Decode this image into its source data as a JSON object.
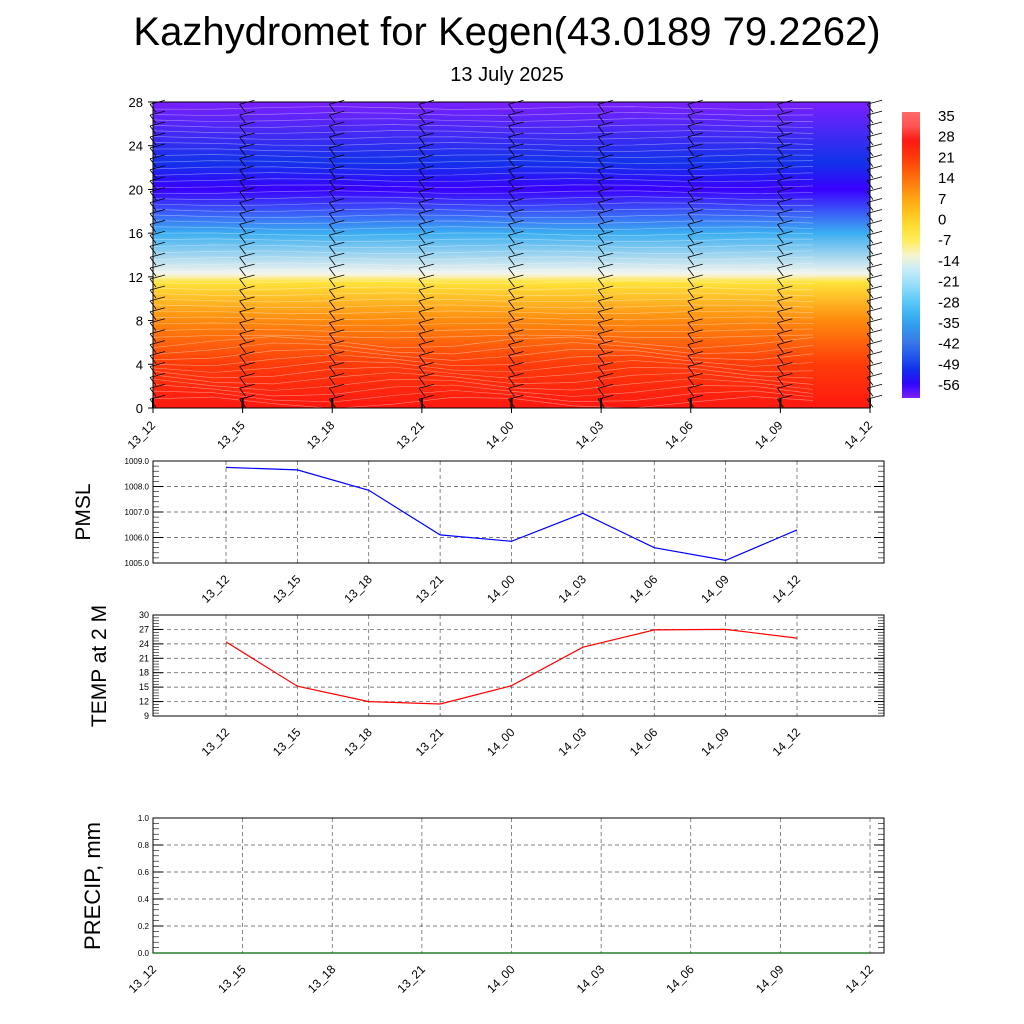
{
  "title": "Kazhydromet for Kegen(43.0189 79.2262)",
  "subtitle": "13 July 2025",
  "chart_data": [
    {
      "type": "heatmap",
      "title": "",
      "x_ticks": [
        "13_12",
        "13_15",
        "13_18",
        "13_21",
        "14_00",
        "14_03",
        "14_06",
        "14_09",
        "14_12"
      ],
      "y_ticks": [
        0,
        4,
        8,
        12,
        16,
        20,
        24,
        28
      ],
      "ylim": [
        0,
        28
      ],
      "colorbar_labels": [
        "35",
        "28",
        "21",
        "14",
        "7",
        "0",
        "-7",
        "-14",
        "-21",
        "-28",
        "-35",
        "-42",
        "-49",
        "-56"
      ],
      "temperature_profile": [
        {
          "height": 0,
          "value": 28
        },
        {
          "height": 4,
          "value": 22
        },
        {
          "height": 8,
          "value": 12
        },
        {
          "height": 11.5,
          "value": -2
        },
        {
          "height": 12.3,
          "value": -12
        },
        {
          "height": 16,
          "value": -32
        },
        {
          "height": 20,
          "value": -56
        },
        {
          "height": 22.5,
          "value": -50
        },
        {
          "height": 28,
          "value": -60
        }
      ],
      "wind_barbs": "shown at each time column"
    },
    {
      "type": "line",
      "ylabel": "PMSL",
      "x": [
        "13_12",
        "13_15",
        "13_18",
        "13_21",
        "14_00",
        "14_03",
        "14_06",
        "14_09",
        "14_12"
      ],
      "series": [
        {
          "values": [
            1008.75,
            1008.65,
            1007.85,
            1006.1,
            1005.85,
            1006.95,
            1005.6,
            1005.1,
            1006.3
          ],
          "color": "#0000ff"
        }
      ],
      "ylim": [
        1005.0,
        1009.0
      ],
      "y_ticks": [
        "1005.0",
        "1006.0",
        "1007.0",
        "1008.0",
        "1009.0"
      ],
      "grid": true
    },
    {
      "type": "line",
      "ylabel": "TEMP at 2 M",
      "x": [
        "13_12",
        "13_15",
        "13_18",
        "13_21",
        "14_00",
        "14_03",
        "14_06",
        "14_09",
        "14_12"
      ],
      "series": [
        {
          "values": [
            24.4,
            15.2,
            12.0,
            11.5,
            15.3,
            23.3,
            26.9,
            27.0,
            25.2
          ],
          "color": "#ff0000"
        }
      ],
      "ylim": [
        9,
        30
      ],
      "y_ticks": [
        "9",
        "12",
        "15",
        "18",
        "21",
        "24",
        "27",
        "30"
      ],
      "grid": true
    },
    {
      "type": "line",
      "ylabel": "PRECIP, mm",
      "x": [
        "13_12",
        "13_15",
        "13_18",
        "13_21",
        "14_00",
        "14_03",
        "14_06",
        "14_09",
        "14_12"
      ],
      "series": [
        {
          "values": [
            0,
            0,
            0,
            0,
            0,
            0,
            0,
            0,
            0
          ],
          "color": "#006400"
        }
      ],
      "ylim": [
        0,
        1.0
      ],
      "y_ticks": [
        "0.0",
        "0.2",
        "0.4",
        "0.6",
        "0.8",
        "1.0"
      ],
      "grid": true
    }
  ]
}
